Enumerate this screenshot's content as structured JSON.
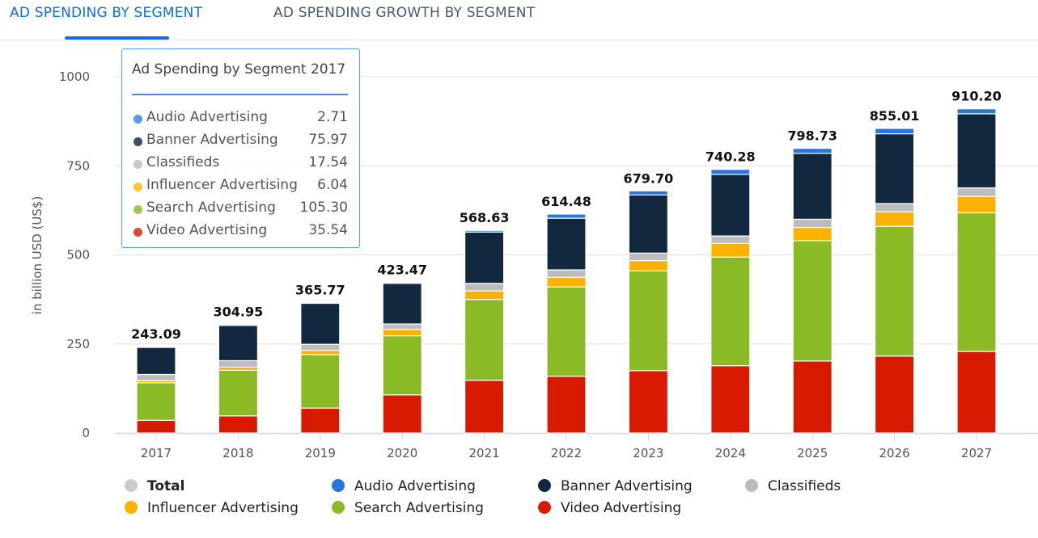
{
  "tabs": [
    {
      "label": "AD SPENDING BY SEGMENT",
      "active": true
    },
    {
      "label": "AD SPENDING GROWTH BY SEGMENT",
      "active": false
    }
  ],
  "chart_data": {
    "type": "bar",
    "stacked": true,
    "ylabel": "in billion USD (US$)",
    "ylim": [
      0,
      1000
    ],
    "yticks": [
      0,
      250,
      500,
      750,
      1000
    ],
    "grid": true,
    "legend_position": "bottom",
    "categories": [
      "2017",
      "2018",
      "2019",
      "2020",
      "2021",
      "2022",
      "2023",
      "2024",
      "2025",
      "2026",
      "2027"
    ],
    "totals": [
      "243.09",
      "304.95",
      "365.77",
      "423.47",
      "568.63",
      "614.48",
      "679.70",
      "740.28",
      "798.73",
      "855.01",
      "910.20"
    ],
    "series": [
      {
        "name": "Video Advertising",
        "color": "#d81b00",
        "values": [
          35.54,
          48,
          70,
          107,
          148,
          159,
          175,
          189,
          202,
          216,
          229
        ]
      },
      {
        "name": "Search Advertising",
        "color": "#8aba24",
        "values": [
          105.3,
          128,
          150,
          166,
          227,
          251,
          280,
          305,
          338,
          364,
          389
        ]
      },
      {
        "name": "Influencer Advertising",
        "color": "#fbb100",
        "values": [
          6.04,
          9,
          12,
          18,
          24,
          27,
          29,
          38,
          37,
          41,
          46
        ]
      },
      {
        "name": "Classifieds",
        "color": "#bcbcbc",
        "values": [
          17.54,
          18,
          17,
          15,
          21,
          21,
          21,
          21,
          23,
          23,
          24
        ]
      },
      {
        "name": "Banner Advertising",
        "color": "#12283f",
        "values": [
          75.97,
          99,
          115,
          114,
          144,
          145,
          163,
          173,
          185,
          196,
          208
        ]
      },
      {
        "name": "Audio Advertising",
        "color": "#2876dd",
        "values": [
          2.71,
          3,
          2,
          3,
          4.6,
          11.5,
          11.7,
          14,
          14,
          15,
          14
        ]
      }
    ]
  },
  "legend": [
    {
      "name": "Total",
      "color": "#cccccc",
      "hidden": true
    },
    {
      "name": "Audio Advertising",
      "color": "#2876dd"
    },
    {
      "name": "Banner Advertising",
      "color": "#12283f"
    },
    {
      "name": "Classifieds",
      "color": "#bcbcbc"
    },
    {
      "name": "Influencer Advertising",
      "color": "#fbb100"
    },
    {
      "name": "Search Advertising",
      "color": "#8aba24"
    },
    {
      "name": "Video Advertising",
      "color": "#d81b00"
    }
  ],
  "tooltip": {
    "title": "Ad Spending by Segment 2017",
    "rows": [
      {
        "name": "Audio Advertising",
        "value": "2.71",
        "color": "#5a9be6"
      },
      {
        "name": "Banner Advertising",
        "value": "75.97",
        "color": "#3e5064"
      },
      {
        "name": "Classifieds",
        "value": "17.54",
        "color": "#c8c8c8"
      },
      {
        "name": "Influencer Advertising",
        "value": "6.04",
        "color": "#fcc33c"
      },
      {
        "name": "Search Advertising",
        "value": "105.30",
        "color": "#a1c94f"
      },
      {
        "name": "Video Advertising",
        "value": "35.54",
        "color": "#df4a35"
      }
    ]
  }
}
